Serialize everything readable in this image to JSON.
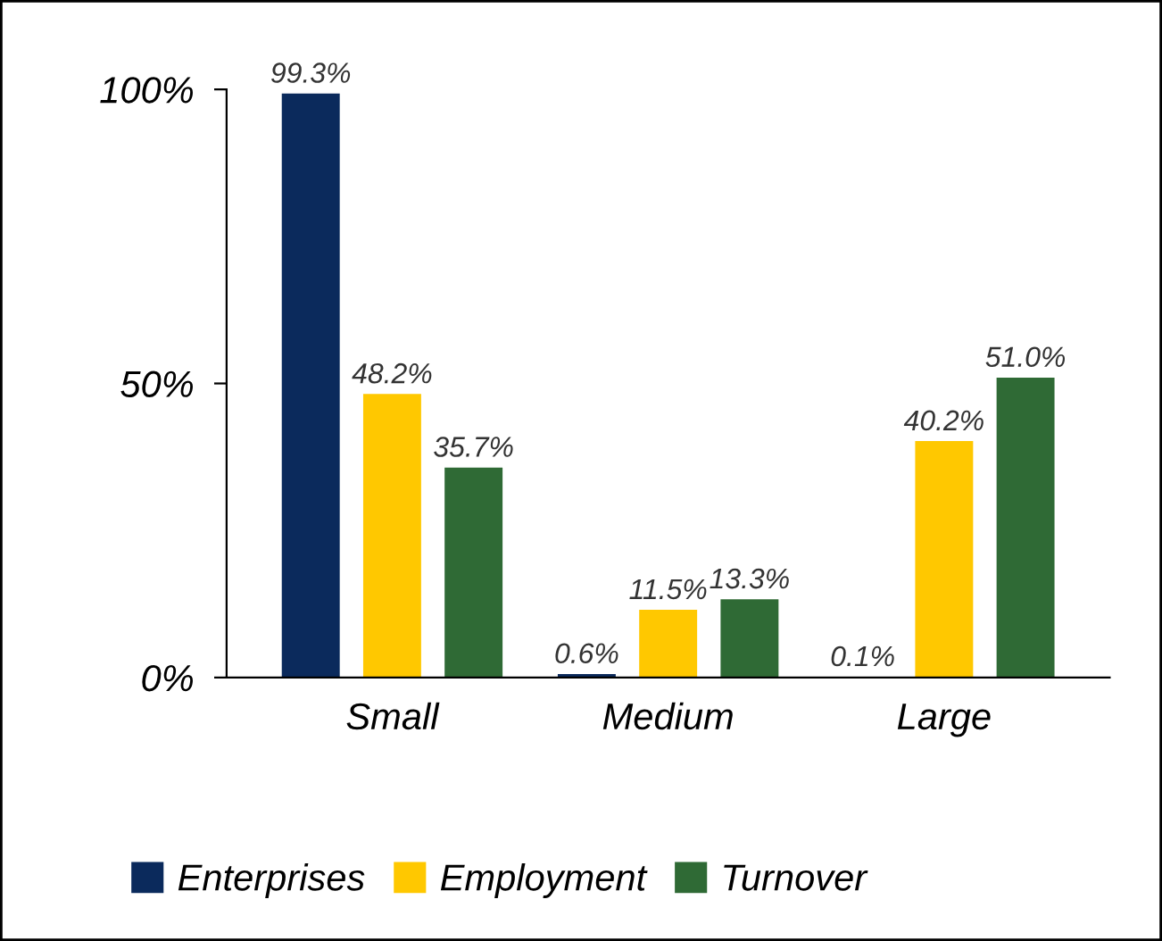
{
  "chart_data": {
    "type": "bar",
    "categories": [
      "Small",
      "Medium",
      "Large"
    ],
    "series": [
      {
        "name": "Enterprises",
        "color": "#0b2a5c",
        "values": [
          99.3,
          0.6,
          0.1
        ],
        "value_labels": [
          "99.3%",
          "0.6%",
          "0.1%"
        ]
      },
      {
        "name": "Employment",
        "color": "#ffc800",
        "values": [
          48.2,
          11.5,
          40.2
        ],
        "value_labels": [
          "48.2%",
          "11.5%",
          "40.2%"
        ]
      },
      {
        "name": "Turnover",
        "color": "#2f6a35",
        "values": [
          35.7,
          13.3,
          51.0
        ],
        "value_labels": [
          "35.7%",
          "13.3%",
          "51.0%"
        ]
      }
    ],
    "ylim": [
      0,
      100
    ],
    "yticks": [
      {
        "value": 0,
        "label": "0%"
      },
      {
        "value": 50,
        "label": "50%"
      },
      {
        "value": 100,
        "label": "100%"
      }
    ],
    "grid": false,
    "legend": "bottom"
  }
}
